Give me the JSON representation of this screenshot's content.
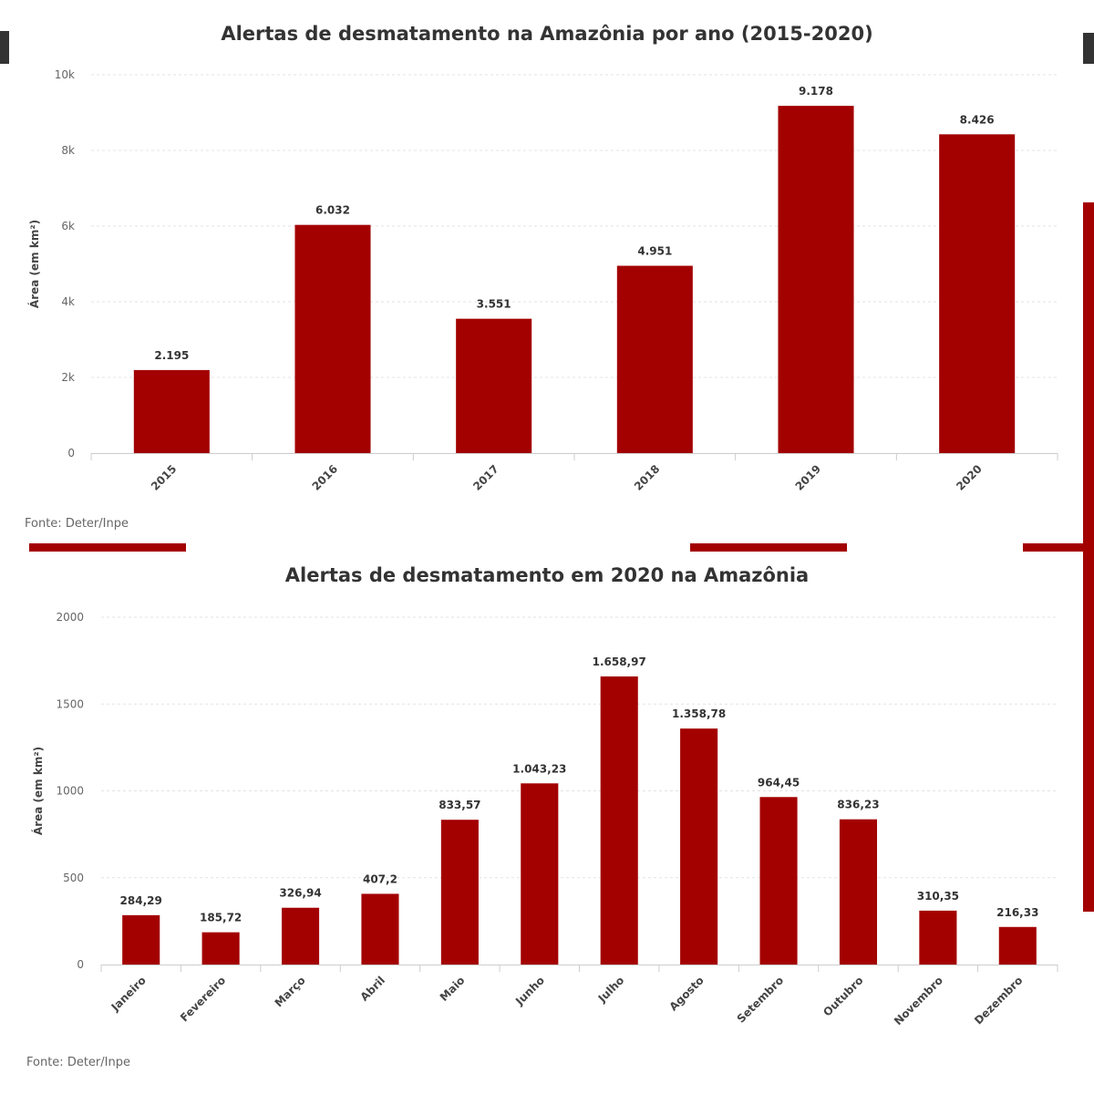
{
  "colors": {
    "bar": "#a30000",
    "text": "#333333",
    "grid": "#e3e3e3"
  },
  "chart_data": [
    {
      "type": "bar",
      "title": "Alertas de desmatamento na Amazônia por ano (2015-2020)",
      "xlabel": "",
      "ylabel": "Área (em km²)",
      "ylim": [
        0,
        10000
      ],
      "yticks": [
        0,
        2000,
        4000,
        6000,
        8000,
        10000
      ],
      "ytick_labels": [
        "0",
        "2k",
        "4k",
        "6k",
        "8k",
        "10k"
      ],
      "categories": [
        "2015",
        "2016",
        "2017",
        "2018",
        "2019",
        "2020"
      ],
      "values": [
        2195,
        6032,
        3551,
        4951,
        9178,
        8426
      ],
      "value_labels": [
        "2.195",
        "6.032",
        "3.551",
        "4.951",
        "9.178",
        "8.426"
      ],
      "source": "Fonte: Deter/Inpe",
      "grid": true
    },
    {
      "type": "bar",
      "title": "Alertas de desmatamento em 2020 na Amazônia",
      "xlabel": "",
      "ylabel": "Área (em km²)",
      "ylim": [
        0,
        2000
      ],
      "yticks": [
        0,
        500,
        1000,
        1500,
        2000
      ],
      "ytick_labels": [
        "0",
        "500",
        "1000",
        "1500",
        "2000"
      ],
      "categories": [
        "Janeiro",
        "Fevereiro",
        "Março",
        "Abril",
        "Maio",
        "Junho",
        "Julho",
        "Agosto",
        "Setembro",
        "Outubro",
        "Novembro",
        "Dezembro"
      ],
      "values": [
        284.29,
        185.72,
        326.94,
        407.2,
        833.57,
        1043.23,
        1658.97,
        1358.78,
        964.45,
        836.23,
        310.35,
        216.33
      ],
      "value_labels": [
        "284,29",
        "185,72",
        "326,94",
        "407,2",
        "833,57",
        "1.043,23",
        "1.658,97",
        "1.358,78",
        "964,45",
        "836,23",
        "310,35",
        "216,33"
      ],
      "source": "Fonte: Deter/Inpe",
      "grid": true
    }
  ]
}
